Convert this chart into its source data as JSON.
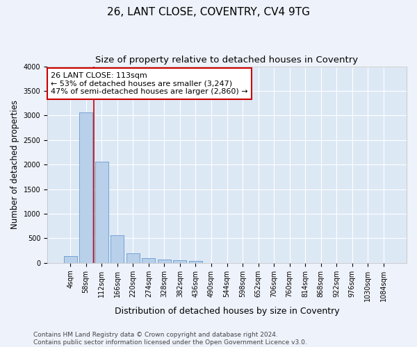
{
  "title_line1": "26, LANT CLOSE, COVENTRY, CV4 9TG",
  "title_line2": "Size of property relative to detached houses in Coventry",
  "xlabel": "Distribution of detached houses by size in Coventry",
  "ylabel": "Number of detached properties",
  "bar_color": "#b8d0ea",
  "bar_edge_color": "#6699cc",
  "background_color": "#dde8f5",
  "grid_color": "#ffffff",
  "categories": [
    "4sqm",
    "58sqm",
    "112sqm",
    "166sqm",
    "220sqm",
    "274sqm",
    "328sqm",
    "382sqm",
    "436sqm",
    "490sqm",
    "544sqm",
    "598sqm",
    "652sqm",
    "706sqm",
    "760sqm",
    "814sqm",
    "868sqm",
    "922sqm",
    "976sqm",
    "1030sqm",
    "1084sqm"
  ],
  "values": [
    140,
    3060,
    2060,
    560,
    200,
    90,
    65,
    50,
    45,
    0,
    0,
    0,
    0,
    0,
    0,
    0,
    0,
    0,
    0,
    0,
    0
  ],
  "ylim": [
    0,
    4000
  ],
  "yticks": [
    0,
    500,
    1000,
    1500,
    2000,
    2500,
    3000,
    3500,
    4000
  ],
  "vline_x_index": 2,
  "vline_color": "#cc0000",
  "annotation_line1": "26 LANT CLOSE: 113sqm",
  "annotation_line2": "← 53% of detached houses are smaller (3,247)",
  "annotation_line3": "47% of semi-detached houses are larger (2,860) →",
  "annotation_box_color": "#cc0000",
  "footer_text": "Contains HM Land Registry data © Crown copyright and database right 2024.\nContains public sector information licensed under the Open Government Licence v3.0.",
  "title_fontsize": 11,
  "subtitle_fontsize": 9.5,
  "xlabel_fontsize": 9,
  "ylabel_fontsize": 8.5,
  "tick_fontsize": 7,
  "annotation_fontsize": 8,
  "footer_fontsize": 6.5
}
